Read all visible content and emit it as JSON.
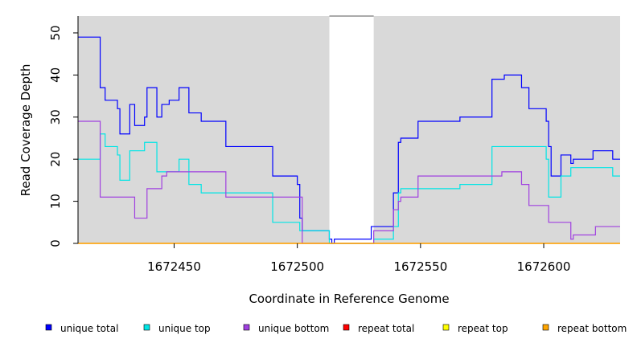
{
  "chart_data": {
    "type": "line",
    "title": "",
    "xlabel": "Coordinate in Reference Genome",
    "ylabel": "Read Coverage Depth",
    "xlim": [
      1672411,
      1672631
    ],
    "ylim": [
      0,
      54
    ],
    "x_ticks": [
      1672450,
      1672500,
      1672550,
      1672600
    ],
    "y_ticks": [
      0,
      10,
      20,
      30,
      40,
      50
    ],
    "grid": false,
    "background": "#d9d9d9",
    "gap_region": [
      1672513,
      1672531
    ],
    "legend_position": "bottom",
    "series": [
      {
        "name": "unique total",
        "color": "#0000ff",
        "step": true,
        "points": [
          [
            1672411,
            49
          ],
          [
            1672420,
            37
          ],
          [
            1672422,
            34
          ],
          [
            1672427,
            32
          ],
          [
            1672428,
            26
          ],
          [
            1672432,
            33
          ],
          [
            1672434,
            28
          ],
          [
            1672438,
            30
          ],
          [
            1672439,
            37
          ],
          [
            1672443,
            30
          ],
          [
            1672445,
            33
          ],
          [
            1672448,
            34
          ],
          [
            1672452,
            37
          ],
          [
            1672456,
            31
          ],
          [
            1672461,
            29
          ],
          [
            1672471,
            23
          ],
          [
            1672490,
            16
          ],
          [
            1672500,
            14
          ],
          [
            1672501,
            6
          ],
          [
            1672502,
            3
          ],
          [
            1672513,
            1
          ],
          [
            1672514,
            0
          ],
          [
            1672515,
            1
          ],
          [
            1672530,
            4
          ],
          [
            1672539,
            12
          ],
          [
            1672541,
            24
          ],
          [
            1672542,
            25
          ],
          [
            1672549,
            29
          ],
          [
            1672566,
            30
          ],
          [
            1672579,
            39
          ],
          [
            1672584,
            40
          ],
          [
            1672591,
            37
          ],
          [
            1672594,
            32
          ],
          [
            1672601,
            29
          ],
          [
            1672602,
            23
          ],
          [
            1672603,
            16
          ],
          [
            1672607,
            21
          ],
          [
            1672611,
            19
          ],
          [
            1672612,
            20
          ],
          [
            1672620,
            22
          ],
          [
            1672628,
            20
          ],
          [
            1672631,
            20
          ]
        ]
      },
      {
        "name": "unique top",
        "color": "#00e5e5",
        "step": true,
        "points": [
          [
            1672411,
            20
          ],
          [
            1672420,
            26
          ],
          [
            1672422,
            23
          ],
          [
            1672427,
            21
          ],
          [
            1672428,
            15
          ],
          [
            1672432,
            22
          ],
          [
            1672438,
            24
          ],
          [
            1672443,
            17
          ],
          [
            1672452,
            20
          ],
          [
            1672456,
            14
          ],
          [
            1672461,
            12
          ],
          [
            1672490,
            5
          ],
          [
            1672501,
            3
          ],
          [
            1672513,
            0
          ],
          [
            1672531,
            1
          ],
          [
            1672539,
            4
          ],
          [
            1672541,
            12
          ],
          [
            1672542,
            13
          ],
          [
            1672566,
            14
          ],
          [
            1672579,
            23
          ],
          [
            1672601,
            20
          ],
          [
            1672602,
            11
          ],
          [
            1672607,
            16
          ],
          [
            1672611,
            18
          ],
          [
            1672628,
            16
          ],
          [
            1672631,
            16
          ]
        ]
      },
      {
        "name": "unique bottom",
        "color": "#a040e0",
        "step": true,
        "points": [
          [
            1672411,
            29
          ],
          [
            1672420,
            11
          ],
          [
            1672434,
            6
          ],
          [
            1672439,
            13
          ],
          [
            1672445,
            16
          ],
          [
            1672447,
            17
          ],
          [
            1672471,
            11
          ],
          [
            1672502,
            0
          ],
          [
            1672531,
            3
          ],
          [
            1672539,
            8
          ],
          [
            1672541,
            10
          ],
          [
            1672542,
            11
          ],
          [
            1672549,
            16
          ],
          [
            1672583,
            17
          ],
          [
            1672591,
            14
          ],
          [
            1672594,
            9
          ],
          [
            1672602,
            5
          ],
          [
            1672611,
            1
          ],
          [
            1672612,
            2
          ],
          [
            1672621,
            4
          ],
          [
            1672631,
            4
          ]
        ]
      },
      {
        "name": "repeat total",
        "color": "#ff0000",
        "step": true,
        "points": [
          [
            1672411,
            0
          ],
          [
            1672631,
            0
          ]
        ]
      },
      {
        "name": "repeat top",
        "color": "#ffff00",
        "step": true,
        "points": [
          [
            1672411,
            0
          ],
          [
            1672631,
            0
          ]
        ]
      },
      {
        "name": "repeat bottom",
        "color": "#ffa500",
        "step": true,
        "points": [
          [
            1672411,
            0
          ],
          [
            1672631,
            0
          ]
        ]
      }
    ]
  }
}
